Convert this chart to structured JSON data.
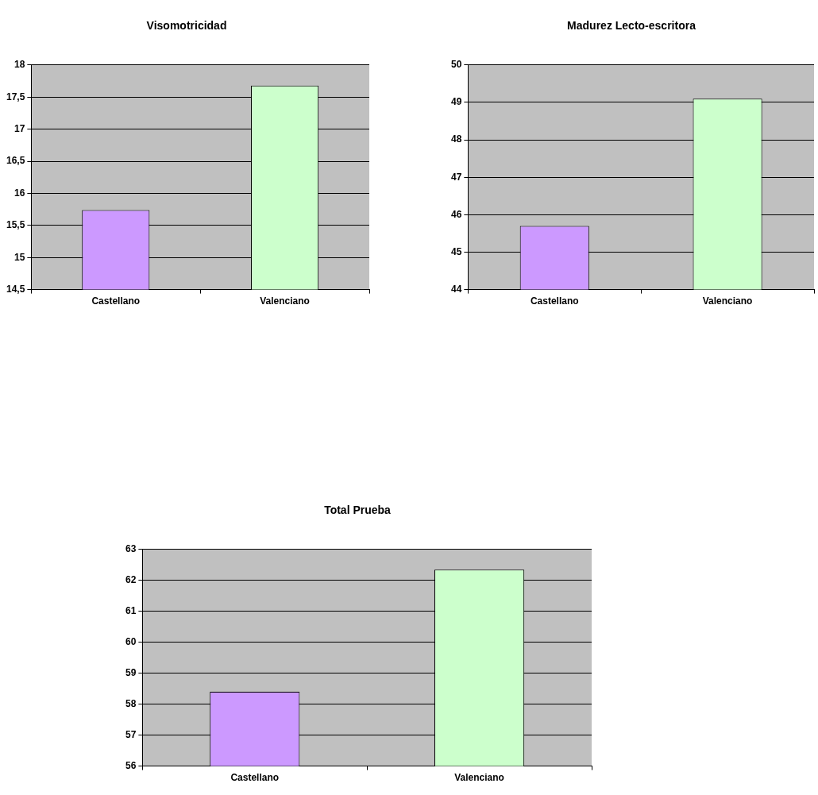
{
  "chart_data": [
    {
      "type": "bar",
      "title": "Visomotricidad",
      "categories": [
        "Castellano",
        "Valenciano"
      ],
      "values": [
        15.74,
        17.68
      ],
      "colors": [
        "#cc99ff",
        "#ccffcc"
      ],
      "ylim": [
        14.5,
        18
      ],
      "yticks": [
        {
          "value": 14.5,
          "label": "14,5"
        },
        15,
        {
          "value": 15.5,
          "label": "15,5"
        },
        16,
        {
          "value": 16.5,
          "label": "16,5"
        },
        17,
        {
          "value": 17.5,
          "label": "17,5"
        },
        18
      ],
      "grid": "y",
      "legend": false
    },
    {
      "type": "bar",
      "title": "Madurez Lecto-escritora",
      "categories": [
        "Castellano",
        "Valenciano"
      ],
      "values": [
        45.7,
        49.1
      ],
      "colors": [
        "#cc99ff",
        "#ccffcc"
      ],
      "ylim": [
        44,
        50
      ],
      "yticks": [
        44,
        45,
        46,
        47,
        48,
        49,
        50
      ],
      "grid": "y",
      "legend": false
    },
    {
      "type": "bar",
      "title": "Total Prueba",
      "categories": [
        "Castellano",
        "Valenciano"
      ],
      "values": [
        58.4,
        62.35
      ],
      "colors": [
        "#cc99ff",
        "#ccffcc"
      ],
      "ylim": [
        56,
        63
      ],
      "yticks": [
        56,
        57,
        58,
        59,
        60,
        61,
        62,
        63
      ],
      "grid": "y",
      "legend": false
    }
  ]
}
